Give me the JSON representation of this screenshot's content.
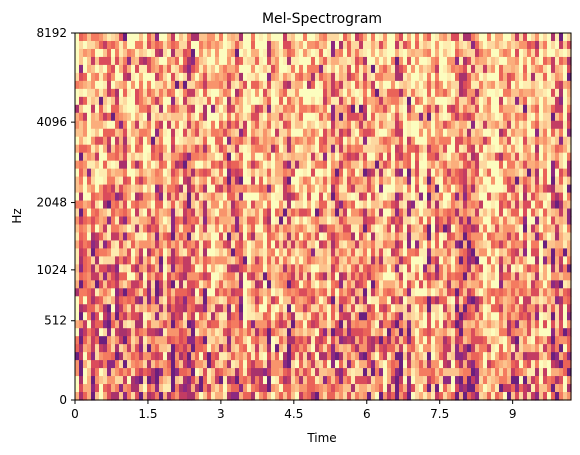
{
  "chart_data": {
    "type": "heatmap",
    "title": "Mel-Spectrogram",
    "xlabel": "Time",
    "ylabel": "Hz",
    "x_ticks": [
      "0",
      "1.5",
      "3",
      "4.5",
      "6",
      "7.5",
      "9"
    ],
    "x_tick_values": [
      0,
      1.5,
      3,
      4.5,
      6,
      7.5,
      9
    ],
    "xlim": [
      0,
      10.2
    ],
    "y_ticks": [
      "0",
      "512",
      "1024",
      "2048",
      "4096",
      "8192"
    ],
    "y_tick_values": [
      0,
      512,
      1024,
      2048,
      4096,
      8192
    ],
    "y_scale": "mel",
    "ylim": [
      0,
      8192
    ],
    "colormap": "magma",
    "palette": [
      "#fcfdbf",
      "#feecb0",
      "#fdd8a0",
      "#fcc38d",
      "#fbae7c",
      "#f8946c",
      "#f47b60",
      "#ea6358",
      "#da4c5b",
      "#c33c63",
      "#a8326c",
      "#8c2981",
      "#6a1f7e"
    ],
    "grid": false,
    "legend": "none"
  }
}
